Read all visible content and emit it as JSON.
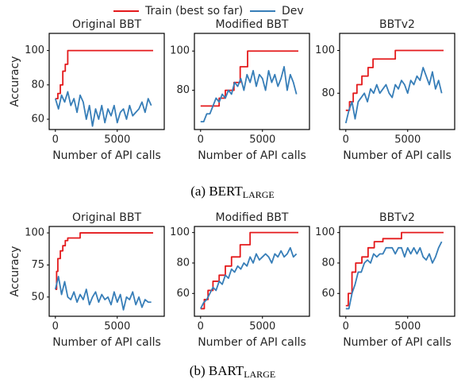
{
  "captions": [
    {
      "text": "(a) BERT",
      "sub": "LARGE"
    },
    {
      "text": "(b) BART",
      "sub": "LARGE"
    }
  ],
  "chart_data": [
    {
      "type": "line",
      "title": "Original BBT",
      "xlabel": "Number of API calls",
      "ylabel": "Accuracy",
      "xlim": [
        -500,
        8800
      ],
      "ylim": [
        54,
        110
      ],
      "xticks": [
        0,
        5000
      ],
      "yticks": [
        60,
        80,
        100
      ],
      "series": [
        {
          "name": "Train (best so far)",
          "color": "#e41a1c",
          "x": [
            0,
            200,
            200,
            400,
            400,
            600,
            600,
            800,
            800,
            1000,
            1000,
            7900
          ],
          "values": [
            72,
            72,
            75,
            75,
            80,
            80,
            88,
            88,
            92,
            92,
            100,
            100
          ]
        },
        {
          "name": "Dev",
          "color": "#377eb8",
          "x": [
            0,
            250,
            500,
            750,
            1000,
            1250,
            1500,
            1750,
            2000,
            2250,
            2500,
            2750,
            3000,
            3250,
            3500,
            3750,
            4000,
            4250,
            4500,
            4750,
            5000,
            5250,
            5500,
            5750,
            6000,
            6250,
            6500,
            6750,
            7000,
            7250,
            7500,
            7750
          ],
          "values": [
            72,
            66,
            74,
            70,
            76,
            68,
            72,
            64,
            74,
            70,
            60,
            68,
            56,
            66,
            60,
            68,
            58,
            66,
            62,
            68,
            58,
            64,
            66,
            60,
            68,
            62,
            64,
            66,
            70,
            64,
            72,
            68
          ]
        }
      ]
    },
    {
      "type": "line",
      "title": "Modified BBT",
      "xlabel": "Number of API calls",
      "xlim": [
        -500,
        8800
      ],
      "ylim": [
        60,
        109
      ],
      "xticks": [
        0,
        5000
      ],
      "yticks": [
        80,
        100
      ],
      "series": [
        {
          "name": "Train (best so far)",
          "color": "#e41a1c",
          "x": [
            0,
            1500,
            1500,
            2000,
            2000,
            2700,
            2700,
            3200,
            3200,
            3800,
            3800,
            7900
          ],
          "values": [
            72,
            72,
            76,
            76,
            80,
            80,
            84,
            84,
            92,
            92,
            100,
            100
          ]
        },
        {
          "name": "Dev",
          "color": "#377eb8",
          "x": [
            0,
            250,
            500,
            750,
            1000,
            1250,
            1500,
            1750,
            2000,
            2250,
            2500,
            2750,
            3000,
            3250,
            3500,
            3750,
            4000,
            4250,
            4500,
            4750,
            5000,
            5250,
            5500,
            5750,
            6000,
            6250,
            6500,
            6750,
            7000,
            7250,
            7500,
            7750
          ],
          "values": [
            64,
            64,
            68,
            68,
            72,
            76,
            74,
            78,
            76,
            80,
            78,
            84,
            82,
            86,
            80,
            88,
            84,
            90,
            82,
            88,
            86,
            80,
            90,
            84,
            88,
            82,
            86,
            92,
            80,
            88,
            84,
            78
          ]
        }
      ]
    },
    {
      "type": "line",
      "title": "BBTv2",
      "xlabel": "Number of API calls",
      "xlim": [
        -500,
        8800
      ],
      "ylim": [
        63,
        108
      ],
      "xticks": [
        0,
        5000
      ],
      "yticks": [
        80,
        100
      ],
      "series": [
        {
          "name": "Train (best so far)",
          "color": "#e41a1c",
          "x": [
            0,
            300,
            300,
            600,
            600,
            900,
            900,
            1300,
            1300,
            1800,
            1800,
            2200,
            2200,
            4000,
            4000,
            7900
          ],
          "values": [
            72,
            72,
            76,
            76,
            80,
            80,
            84,
            84,
            88,
            88,
            92,
            92,
            96,
            96,
            100,
            100
          ]
        },
        {
          "name": "Dev",
          "color": "#377eb8",
          "x": [
            0,
            250,
            500,
            750,
            1000,
            1250,
            1500,
            1750,
            2000,
            2250,
            2500,
            2750,
            3000,
            3250,
            3500,
            3750,
            4000,
            4250,
            4500,
            4750,
            5000,
            5250,
            5500,
            5750,
            6000,
            6250,
            6500,
            6750,
            7000,
            7250,
            7500,
            7750
          ],
          "values": [
            66,
            72,
            76,
            68,
            76,
            78,
            80,
            76,
            82,
            80,
            84,
            80,
            82,
            84,
            80,
            78,
            84,
            82,
            86,
            84,
            80,
            86,
            84,
            88,
            86,
            92,
            88,
            84,
            90,
            82,
            86,
            80
          ]
        }
      ]
    },
    {
      "type": "line",
      "title": "Original BBT",
      "xlabel": "Number of API calls",
      "ylabel": "Accuracy",
      "xlim": [
        -500,
        8800
      ],
      "ylim": [
        35,
        105
      ],
      "xticks": [
        0,
        5000
      ],
      "yticks": [
        50,
        75,
        100
      ],
      "series": [
        {
          "name": "Train (best so far)",
          "color": "#e41a1c",
          "x": [
            0,
            100,
            100,
            200,
            200,
            400,
            400,
            600,
            600,
            800,
            800,
            1000,
            1000,
            2000,
            2000,
            7900
          ],
          "values": [
            56,
            56,
            70,
            70,
            80,
            80,
            86,
            86,
            90,
            90,
            94,
            94,
            96,
            96,
            100,
            100
          ]
        },
        {
          "name": "Dev",
          "color": "#377eb8",
          "x": [
            0,
            250,
            500,
            750,
            1000,
            1250,
            1500,
            1750,
            2000,
            2250,
            2500,
            2750,
            3000,
            3250,
            3500,
            3750,
            4000,
            4250,
            4500,
            4750,
            5000,
            5250,
            5500,
            5750,
            6000,
            6250,
            6500,
            6750,
            7000,
            7250,
            7500,
            7750
          ],
          "values": [
            56,
            66,
            52,
            62,
            50,
            48,
            54,
            46,
            52,
            48,
            56,
            44,
            50,
            54,
            46,
            52,
            48,
            50,
            44,
            54,
            46,
            52,
            40,
            50,
            48,
            54,
            44,
            50,
            42,
            48,
            46,
            46
          ]
        }
      ]
    },
    {
      "type": "line",
      "title": "Modified BBT",
      "xlabel": "Number of API calls",
      "xlim": [
        -500,
        8800
      ],
      "ylim": [
        45,
        104
      ],
      "xticks": [
        0,
        5000
      ],
      "yticks": [
        60,
        80,
        100
      ],
      "series": [
        {
          "name": "Train (best so far)",
          "color": "#e41a1c",
          "x": [
            0,
            300,
            300,
            600,
            600,
            1000,
            1000,
            1500,
            1500,
            2000,
            2000,
            2500,
            2500,
            3200,
            3200,
            4000,
            4000,
            7900
          ],
          "values": [
            50,
            50,
            56,
            56,
            62,
            62,
            68,
            68,
            72,
            72,
            78,
            78,
            84,
            84,
            92,
            92,
            100,
            100
          ]
        },
        {
          "name": "Dev",
          "color": "#377eb8",
          "x": [
            0,
            250,
            500,
            750,
            1000,
            1250,
            1500,
            1750,
            2000,
            2250,
            2500,
            2750,
            3000,
            3250,
            3500,
            3750,
            4000,
            4250,
            4500,
            4750,
            5000,
            5250,
            5500,
            5750,
            6000,
            6250,
            6500,
            6750,
            7000,
            7250,
            7500,
            7750
          ],
          "values": [
            50,
            54,
            56,
            60,
            64,
            62,
            68,
            66,
            72,
            70,
            76,
            74,
            78,
            76,
            80,
            78,
            84,
            80,
            86,
            82,
            84,
            86,
            84,
            80,
            86,
            84,
            88,
            84,
            86,
            90,
            84,
            86
          ]
        }
      ]
    },
    {
      "type": "line",
      "title": "BBTv2",
      "xlabel": "Number of API calls",
      "xlim": [
        -500,
        8800
      ],
      "ylim": [
        45,
        104
      ],
      "xticks": [
        0,
        5000
      ],
      "yticks": [
        60,
        80,
        100
      ],
      "series": [
        {
          "name": "Train (best so far)",
          "color": "#e41a1c",
          "x": [
            0,
            200,
            200,
            500,
            500,
            800,
            800,
            1300,
            1300,
            1800,
            1800,
            2300,
            2300,
            3000,
            3000,
            4500,
            4500,
            7900
          ],
          "values": [
            52,
            52,
            60,
            60,
            74,
            74,
            80,
            80,
            84,
            84,
            90,
            90,
            94,
            94,
            96,
            96,
            100,
            100
          ]
        },
        {
          "name": "Dev",
          "color": "#377eb8",
          "x": [
            0,
            250,
            500,
            750,
            1000,
            1250,
            1500,
            1750,
            2000,
            2250,
            2500,
            2750,
            3000,
            3250,
            3500,
            3750,
            4000,
            4250,
            4500,
            4750,
            5000,
            5250,
            5500,
            5750,
            6000,
            6250,
            6500,
            6750,
            7000,
            7250,
            7500,
            7750
          ],
          "values": [
            50,
            50,
            60,
            66,
            74,
            74,
            80,
            82,
            80,
            86,
            84,
            86,
            86,
            90,
            90,
            90,
            86,
            90,
            90,
            84,
            90,
            86,
            90,
            86,
            90,
            84,
            82,
            86,
            80,
            84,
            90,
            94
          ]
        }
      ]
    }
  ]
}
